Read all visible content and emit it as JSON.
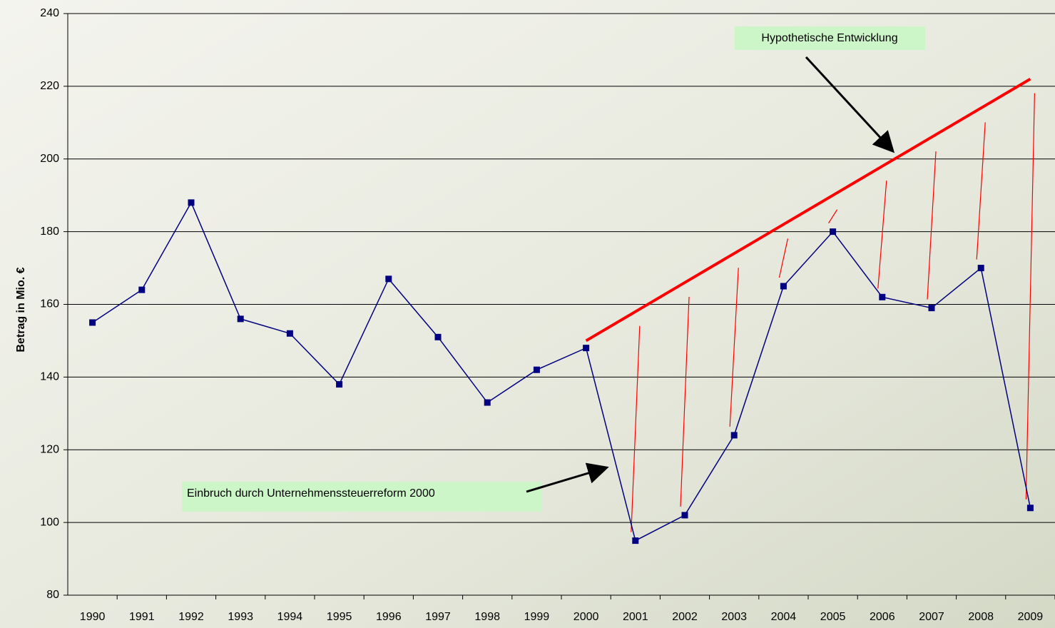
{
  "chart_data": {
    "type": "line",
    "y_label": "Betrag in Mio. €",
    "categories": [
      "1990",
      "1991",
      "1992",
      "1993",
      "1994",
      "1995",
      "1996",
      "1997",
      "1998",
      "1999",
      "2000",
      "2001",
      "2002",
      "2003",
      "2004",
      "2005",
      "2006",
      "2007",
      "2008",
      "2009"
    ],
    "series": [
      {
        "color": "#000080",
        "values": [
          155,
          164,
          188,
          156,
          152,
          138,
          167,
          151,
          133,
          142,
          148,
          95,
          102,
          124,
          165,
          180,
          162,
          159,
          170,
          104
        ]
      },
      {
        "color": "#ff0000",
        "values": [
          null,
          null,
          null,
          null,
          null,
          null,
          null,
          null,
          null,
          null,
          150,
          158,
          166,
          174,
          182,
          190,
          198,
          206,
          214,
          222
        ]
      }
    ],
    "ylim": [
      80,
      240
    ],
    "yticks": [
      80,
      100,
      120,
      140,
      160,
      180,
      200,
      220,
      240
    ],
    "grid": true,
    "annotations": [
      "Hypothetische Entwicklung",
      "Einbruch durch Unternehmenssteuerreform 2000"
    ]
  }
}
